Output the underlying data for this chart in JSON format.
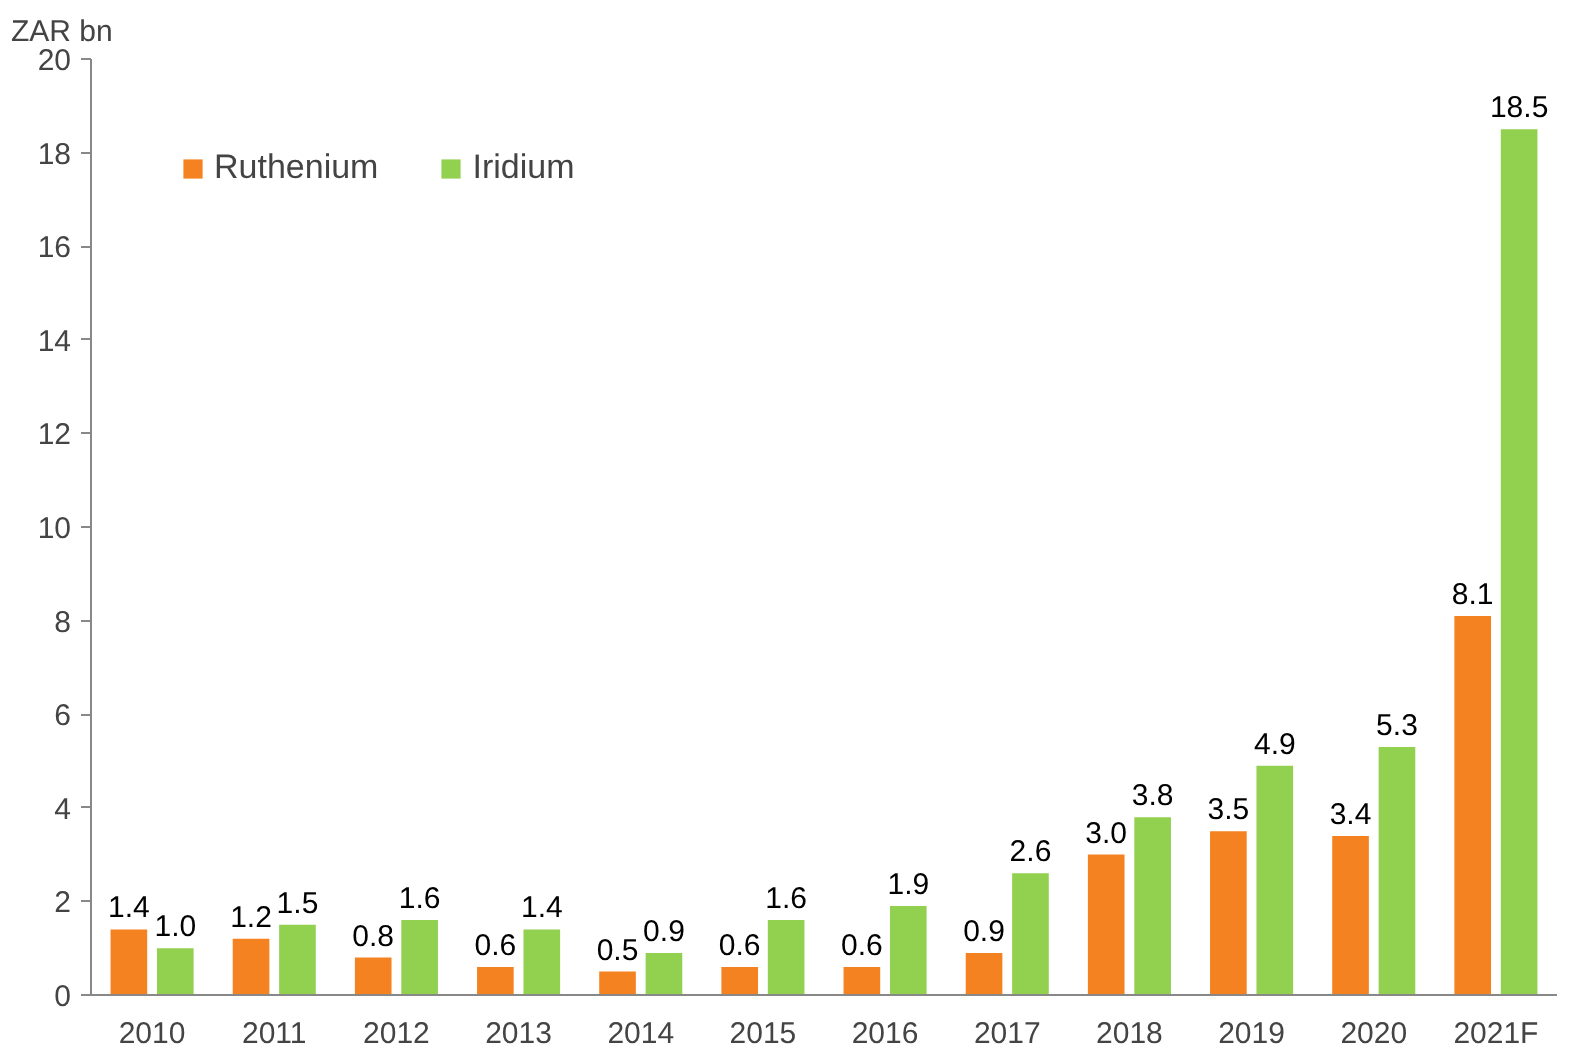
{
  "chart_data": {
    "type": "bar",
    "ylabel": "ZAR bn",
    "categories": [
      "2010",
      "2011",
      "2012",
      "2013",
      "2014",
      "2015",
      "2016",
      "2017",
      "2018",
      "2019",
      "2020",
      "2021F"
    ],
    "series": [
      {
        "name": "Ruthenium",
        "color": "#f58220",
        "values": [
          1.4,
          1.2,
          0.8,
          0.6,
          0.5,
          0.6,
          0.6,
          0.9,
          3.0,
          3.5,
          3.4,
          8.1
        ],
        "value_labels": [
          "1.4",
          "1.2",
          "0.8",
          "0.6",
          "0.5",
          "0.6",
          "0.6",
          "0.9",
          "3.0",
          "3.5",
          "3.4",
          "8.1"
        ]
      },
      {
        "name": "Iridium",
        "color": "#92d050",
        "values": [
          1.0,
          1.5,
          1.6,
          1.4,
          0.9,
          1.6,
          1.9,
          2.6,
          3.8,
          4.9,
          5.3,
          18.5
        ],
        "value_labels": [
          "1.0",
          "1.5",
          "1.6",
          "1.4",
          "0.9",
          "1.6",
          "1.9",
          "2.6",
          "3.8",
          "4.9",
          "5.3",
          "18.5"
        ]
      }
    ],
    "ylim": [
      0,
      20
    ],
    "yticks": [
      0,
      2,
      4,
      6,
      8,
      10,
      12,
      14,
      16,
      18,
      20
    ],
    "grid": false,
    "legend": "top left"
  }
}
